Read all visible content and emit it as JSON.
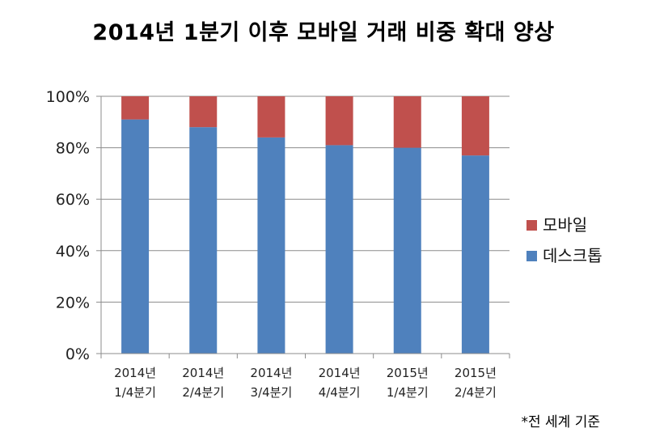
{
  "chart_data": {
    "type": "bar",
    "stacked": true,
    "percent_stacked": true,
    "title": "2014년 1분기 이후 모바일 거래 비중 확대 양상",
    "categories": [
      [
        "2014년",
        "1/4분기"
      ],
      [
        "2014년",
        "2/4분기"
      ],
      [
        "2014년",
        "3/4분기"
      ],
      [
        "2014년",
        "4/4분기"
      ],
      [
        "2015년",
        "1/4분기"
      ],
      [
        "2015년",
        "2/4분기"
      ]
    ],
    "series": [
      {
        "name": "데스크톱",
        "color": "#4f81bd",
        "values": [
          91,
          88,
          84,
          81,
          80,
          77
        ]
      },
      {
        "name": "모바일",
        "color": "#c0504d",
        "values": [
          9,
          12,
          16,
          19,
          20,
          23
        ]
      }
    ],
    "ylim": [
      0,
      100
    ],
    "yticks": [
      "0%",
      "20%",
      "40%",
      "60%",
      "80%",
      "100%"
    ],
    "grid": true,
    "legend_position": "right",
    "legend_order": [
      "모바일",
      "데스크톱"
    ],
    "xlabel": "",
    "ylabel": ""
  },
  "footnote": "*전 세계 기준"
}
